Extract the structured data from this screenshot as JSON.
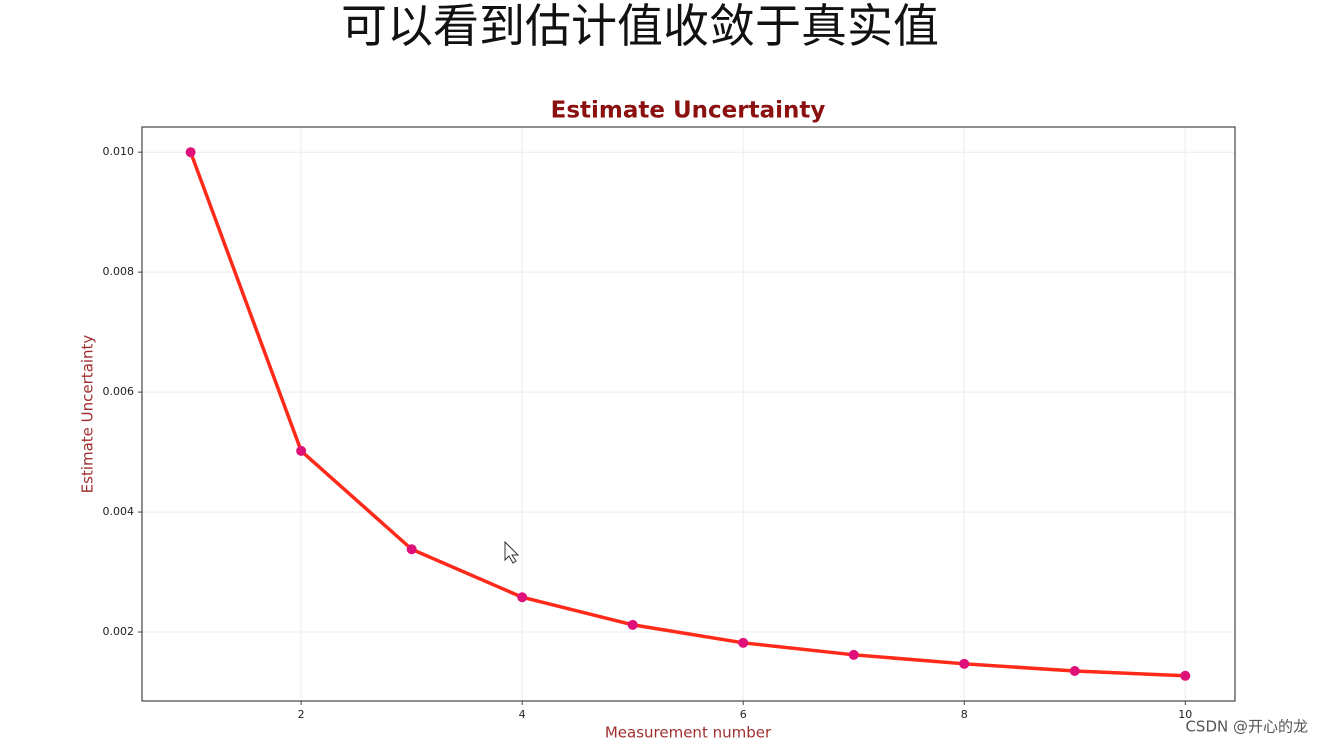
{
  "slide_title": "可以看到估计值收敛于真实值",
  "chart_data": {
    "type": "line",
    "title": "Estimate Uncertainty",
    "x_label": "Measurement number",
    "y_label": "Estimate Uncertainty",
    "x": [
      1,
      2,
      3,
      4,
      5,
      6,
      7,
      8,
      9,
      10
    ],
    "series": [
      {
        "color": "#ff2a1a",
        "marker_color": "#e0107a",
        "values": [
          0.01,
          0.00502,
          0.00338,
          0.00258,
          0.00212,
          0.00182,
          0.00162,
          0.00147,
          0.00135,
          0.00127
        ]
      }
    ],
    "xlim": [
      0.56,
      10.45
    ],
    "ylim": [
      0.00085,
      0.01042
    ],
    "xticks": [
      2,
      4,
      6,
      8,
      10
    ],
    "yticks": [
      0.002,
      0.004,
      0.006,
      0.008,
      {
        "value": 0.01,
        "label": "0.010"
      }
    ],
    "grid": true
  },
  "watermark": "CSDN @开心的龙"
}
